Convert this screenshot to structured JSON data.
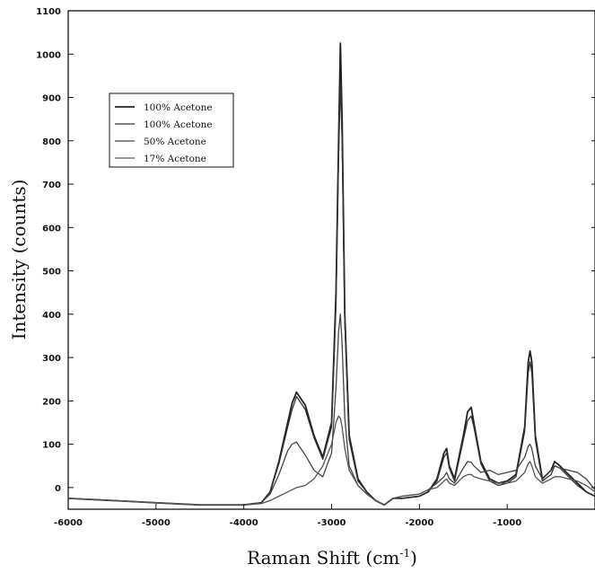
{
  "chart_data": {
    "type": "line",
    "xlabel": "Raman Shift (cm",
    "xlabel_sup": "-1",
    "xlabel_close": ")",
    "ylabel": "Intensity (counts)",
    "xlim": [
      -6000,
      0
    ],
    "ylim": [
      -50,
      1100
    ],
    "xticks": [
      -6000,
      -5000,
      -4000,
      -3000,
      -2000,
      -1000
    ],
    "xtick_labels": [
      "-6000",
      "-5000",
      "-4000",
      "-3000",
      "-2000",
      "-1000"
    ],
    "yticks": [
      0,
      100,
      200,
      300,
      400,
      500,
      600,
      700,
      800,
      900,
      1000,
      1100
    ],
    "ytick_labels": [
      "0",
      "100",
      "200",
      "300",
      "400",
      "500",
      "600",
      "700",
      "800",
      "900",
      "1000",
      "1100"
    ],
    "grid": false,
    "legend_position": "top-left",
    "series": [
      {
        "name": "100% Acetone",
        "color": "#222222",
        "x": [
          -6000,
          -5500,
          -5000,
          -4500,
          -4000,
          -3800,
          -3700,
          -3600,
          -3500,
          -3450,
          -3400,
          -3300,
          -3200,
          -3100,
          -3000,
          -2950,
          -2920,
          -2900,
          -2880,
          -2850,
          -2800,
          -2700,
          -2600,
          -2500,
          -2400,
          -2300,
          -2200,
          -2000,
          -1900,
          -1800,
          -1720,
          -1690,
          -1660,
          -1600,
          -1500,
          -1450,
          -1410,
          -1380,
          -1300,
          -1200,
          -1100,
          -1000,
          -900,
          -800,
          -760,
          -740,
          -720,
          -680,
          -600,
          -500,
          -460,
          -400,
          -300,
          -200,
          -100,
          0
        ],
        "y": [
          -25,
          -30,
          -35,
          -40,
          -40,
          -35,
          -10,
          60,
          150,
          195,
          220,
          190,
          120,
          70,
          150,
          450,
          800,
          1025,
          850,
          400,
          120,
          20,
          -10,
          -30,
          -40,
          -25,
          -25,
          -20,
          -10,
          20,
          80,
          90,
          50,
          20,
          120,
          175,
          185,
          150,
          60,
          20,
          10,
          15,
          30,
          140,
          290,
          315,
          290,
          120,
          20,
          40,
          60,
          50,
          30,
          10,
          -10,
          -20
        ]
      },
      {
        "name": "100% Acetone",
        "color": "#333333",
        "x": [
          -6000,
          -5500,
          -5000,
          -4500,
          -4000,
          -3800,
          -3700,
          -3600,
          -3500,
          -3450,
          -3400,
          -3300,
          -3200,
          -3100,
          -3000,
          -2950,
          -2920,
          -2900,
          -2880,
          -2850,
          -2800,
          -2700,
          -2600,
          -2500,
          -2400,
          -2300,
          -2200,
          -2000,
          -1900,
          -1800,
          -1720,
          -1690,
          -1660,
          -1600,
          -1500,
          -1450,
          -1410,
          -1380,
          -1300,
          -1200,
          -1100,
          -1000,
          -900,
          -800,
          -760,
          -740,
          -720,
          -680,
          -600,
          -500,
          -460,
          -400,
          -300,
          -200,
          -100,
          0
        ],
        "y": [
          -25,
          -30,
          -35,
          -40,
          -40,
          -35,
          -10,
          55,
          140,
          180,
          210,
          180,
          115,
          65,
          140,
          420,
          760,
          935,
          800,
          380,
          110,
          15,
          -10,
          -30,
          -40,
          -25,
          -25,
          -20,
          -10,
          15,
          70,
          80,
          45,
          15,
          110,
          155,
          165,
          140,
          55,
          15,
          5,
          10,
          25,
          130,
          265,
          290,
          265,
          110,
          15,
          30,
          50,
          45,
          25,
          5,
          -10,
          -20
        ]
      },
      {
        "name": "50% Acetone",
        "color": "#444444",
        "x": [
          -6000,
          -5500,
          -5000,
          -4500,
          -4000,
          -3800,
          -3700,
          -3600,
          -3500,
          -3450,
          -3400,
          -3300,
          -3200,
          -3100,
          -3000,
          -2950,
          -2920,
          -2900,
          -2880,
          -2850,
          -2800,
          -2700,
          -2600,
          -2500,
          -2400,
          -2300,
          -2200,
          -2000,
          -1900,
          -1800,
          -1720,
          -1690,
          -1660,
          -1600,
          -1500,
          -1450,
          -1410,
          -1380,
          -1300,
          -1200,
          -1100,
          -1000,
          -900,
          -800,
          -760,
          -740,
          -720,
          -680,
          -600,
          -500,
          -460,
          -400,
          -300,
          -200,
          -100,
          0
        ],
        "y": [
          -25,
          -30,
          -35,
          -40,
          -40,
          -35,
          -15,
          30,
          85,
          100,
          105,
          75,
          40,
          25,
          80,
          230,
          360,
          400,
          330,
          160,
          50,
          5,
          -15,
          -30,
          -40,
          -25,
          -20,
          -15,
          -5,
          10,
          25,
          35,
          20,
          10,
          45,
          60,
          58,
          50,
          35,
          40,
          30,
          35,
          40,
          70,
          95,
          100,
          90,
          50,
          20,
          40,
          50,
          45,
          40,
          35,
          20,
          -5
        ]
      },
      {
        "name": "17% Acetone",
        "color": "#555555",
        "x": [
          -6000,
          -5500,
          -5000,
          -4500,
          -4000,
          -3800,
          -3700,
          -3600,
          -3500,
          -3450,
          -3400,
          -3300,
          -3200,
          -3100,
          -3000,
          -2950,
          -2920,
          -2900,
          -2880,
          -2850,
          -2800,
          -2700,
          -2600,
          -2500,
          -2400,
          -2300,
          -2200,
          -2000,
          -1900,
          -1800,
          -1720,
          -1690,
          -1660,
          -1600,
          -1500,
          -1450,
          -1410,
          -1380,
          -1300,
          -1200,
          -1100,
          -1000,
          -900,
          -800,
          -760,
          -740,
          -720,
          -680,
          -600,
          -500,
          -460,
          -400,
          -300,
          -200,
          -100,
          0
        ],
        "y": [
          -25,
          -30,
          -35,
          -40,
          -40,
          -37,
          -30,
          -20,
          -10,
          -5,
          0,
          5,
          20,
          50,
          100,
          150,
          165,
          160,
          140,
          90,
          40,
          5,
          -15,
          -30,
          -40,
          -25,
          -20,
          -15,
          -5,
          0,
          15,
          20,
          10,
          5,
          25,
          30,
          30,
          25,
          20,
          15,
          10,
          10,
          15,
          35,
          55,
          60,
          50,
          25,
          10,
          20,
          25,
          25,
          20,
          15,
          5,
          -10
        ]
      }
    ]
  }
}
